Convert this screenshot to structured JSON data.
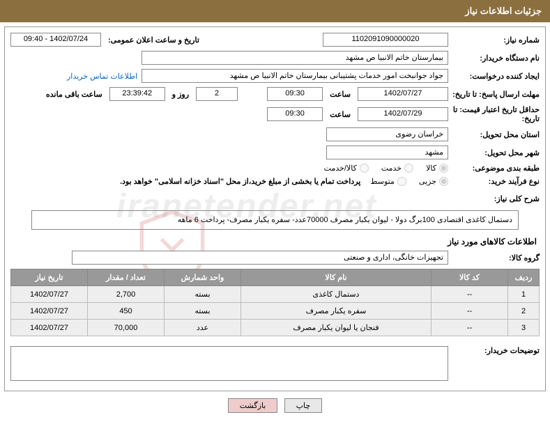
{
  "header": "جزئیات اطلاعات نیاز",
  "labels": {
    "need_no": "شماره نیاز:",
    "announce": "تاریخ و ساعت اعلان عمومی:",
    "buyer_org": "نام دستگاه خریدار:",
    "requester": "ایجاد کننده درخواست:",
    "contact_link": "اطلاعات تماس خریدار",
    "deadline": "مهلت ارسال پاسخ: تا تاریخ:",
    "hour": "ساعت",
    "days_and": "روز و",
    "remain": "ساعت باقی مانده",
    "valid_until": "حداقل تاریخ اعتبار قیمت: تا تاریخ:",
    "province": "استان محل تحویل:",
    "city": "شهر محل تحویل:",
    "category": "طبقه بندی موضوعی:",
    "buy_type": "نوع فرآیند خرید:",
    "note": "پرداخت تمام یا بخشی از مبلغ خرید،از محل \"اسناد خزانه اسلامی\" خواهد بود.",
    "desc": "شرح کلی نیاز:",
    "goods_info": "اطلاعات کالاهای مورد نیاز",
    "group": "گروه کالا:",
    "buyer_notes": "توضیحات خریدار:"
  },
  "vals": {
    "need_no": "1102091090000020",
    "announce": "1402/07/24 - 09:40",
    "buyer_org": "بیمارستان خاتم الانبیا  ص  مشهد",
    "requester": "جواد جوانبخت امور خدمات پشتیبانی بیمارستان خاتم الانبیا  ص  مشهد",
    "dl_date": "1402/07/27",
    "dl_time": "09:30",
    "days": "2",
    "countdown": "23:39:42",
    "valid_date": "1402/07/29",
    "valid_time": "09:30",
    "province": "خراسان رضوی",
    "city": "مشهد",
    "desc": "دستمال کاغذی اقتصادی 100برگ دولا - لیوان یکبار مصرف 70000عدد- سفره یکبار مصرف- پرداخت 6 ماهه",
    "group": "تجهیزات خانگی، اداری و صنعتی"
  },
  "radios": {
    "cat": [
      "کالا",
      "خدمت",
      "کالا/خدمت"
    ],
    "buy": [
      "جزیی",
      "متوسط"
    ]
  },
  "table": {
    "headers": [
      "ردیف",
      "کد کالا",
      "نام کالا",
      "واحد شمارش",
      "تعداد / مقدار",
      "تاریخ نیاز"
    ],
    "rows": [
      [
        "1",
        "--",
        "دستمال کاغذی",
        "بسته",
        "2,700",
        "1402/07/27"
      ],
      [
        "2",
        "--",
        "سفره یکبار مصرف",
        "بسته",
        "450",
        "1402/07/27"
      ],
      [
        "3",
        "--",
        "فنجان یا لیوان یکبار مصرف",
        "عدد",
        "70,000",
        "1402/07/27"
      ]
    ]
  },
  "btns": {
    "print": "چاپ",
    "back": "بازگشت"
  },
  "watermark": "iranetender.net"
}
